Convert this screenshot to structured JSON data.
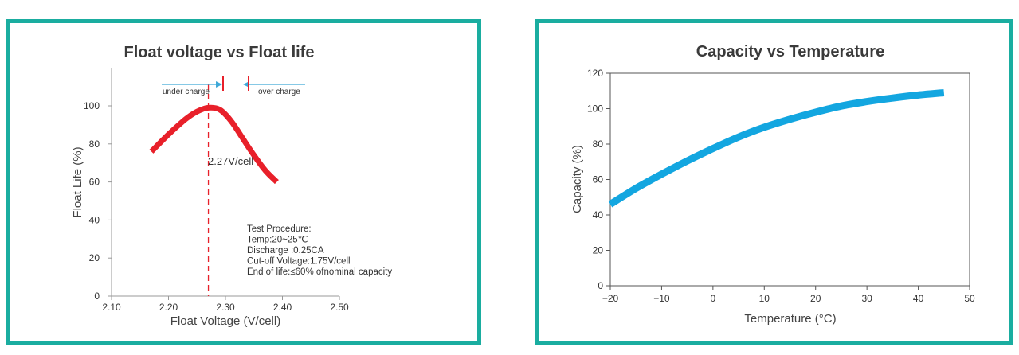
{
  "chart_data": [
    {
      "type": "line",
      "title": "Float voltage vs Float life",
      "xlabel": "Float Voltage (V/cell)",
      "ylabel": "Float Life (%)",
      "xlim": [
        2.1,
        2.5
      ],
      "ylim": [
        0,
        100
      ],
      "x_ticks": [
        "2.10",
        "2.20",
        "2.30",
        "2.40",
        "2.50"
      ],
      "y_ticks": [
        "0",
        "20",
        "40",
        "60",
        "80",
        "100"
      ],
      "series": [
        {
          "color": "#e8202a",
          "x": [
            2.17,
            2.2,
            2.23,
            2.25,
            2.27,
            2.29,
            2.31,
            2.33,
            2.35,
            2.37,
            2.39
          ],
          "y": [
            76,
            85,
            93,
            97,
            99,
            98,
            92,
            83,
            74,
            66,
            60
          ]
        }
      ],
      "reference_line": {
        "x": 2.27,
        "label": "2.27V/cell"
      },
      "range_annotations": {
        "left": "under charge",
        "right": "over charge"
      },
      "test_procedure": [
        "Test Procedure:",
        "Temp:20~25℃",
        "Discharge :0.25CA",
        "Cut-off Voltage:1.75V/cell",
        "End of life:≤60% ofnominal capacity"
      ]
    },
    {
      "type": "line",
      "title": "Capacity vs Temperature",
      "xlabel": "Temperature (°C)",
      "ylabel": "Capacity (%)",
      "xlim": [
        -20,
        50
      ],
      "ylim": [
        0,
        120
      ],
      "x_ticks": [
        "−20",
        "−10",
        "0",
        "10",
        "20",
        "30",
        "40",
        "50"
      ],
      "y_ticks": [
        "0",
        "20",
        "40",
        "60",
        "80",
        "100",
        "120"
      ],
      "series": [
        {
          "color": "#13a6e0",
          "x": [
            -20,
            -15,
            -10,
            -5,
            0,
            5,
            10,
            15,
            20,
            25,
            30,
            35,
            40,
            45
          ],
          "y": [
            46,
            55,
            63,
            70.5,
            77.5,
            84,
            89.5,
            94,
            98,
            101.5,
            104,
            106,
            107.7,
            109
          ]
        }
      ]
    }
  ]
}
